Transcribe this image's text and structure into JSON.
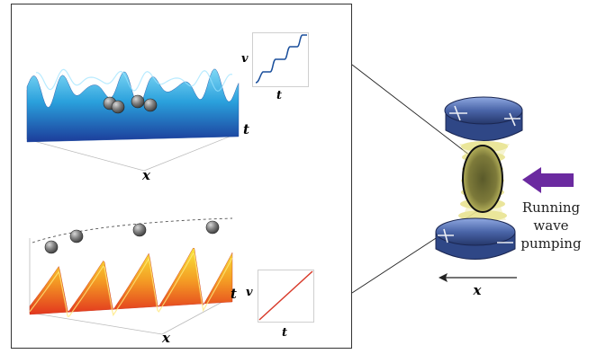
{
  "top_panel": {
    "axis_x": "x",
    "axis_t": "t",
    "inset": {
      "ylabel": "v",
      "xlabel": "t",
      "curve": "staircase"
    }
  },
  "bottom_panel": {
    "axis_x": "x",
    "axis_t": "t",
    "inset": {
      "ylabel": "v",
      "xlabel": "t",
      "curve": "linear"
    }
  },
  "right_schematic": {
    "pump_label_lines": [
      "Running",
      "wave",
      "pumping"
    ],
    "direction_axis": "x",
    "arrow_direction": "left"
  },
  "colors": {
    "arrow_purple": "#6b2aa0",
    "inset_top_line": "#1a4f9c",
    "inset_bottom_line": "#d83a2a",
    "mirror_blue": "#4a65a8",
    "beam_yellow": "#e6e08a"
  }
}
